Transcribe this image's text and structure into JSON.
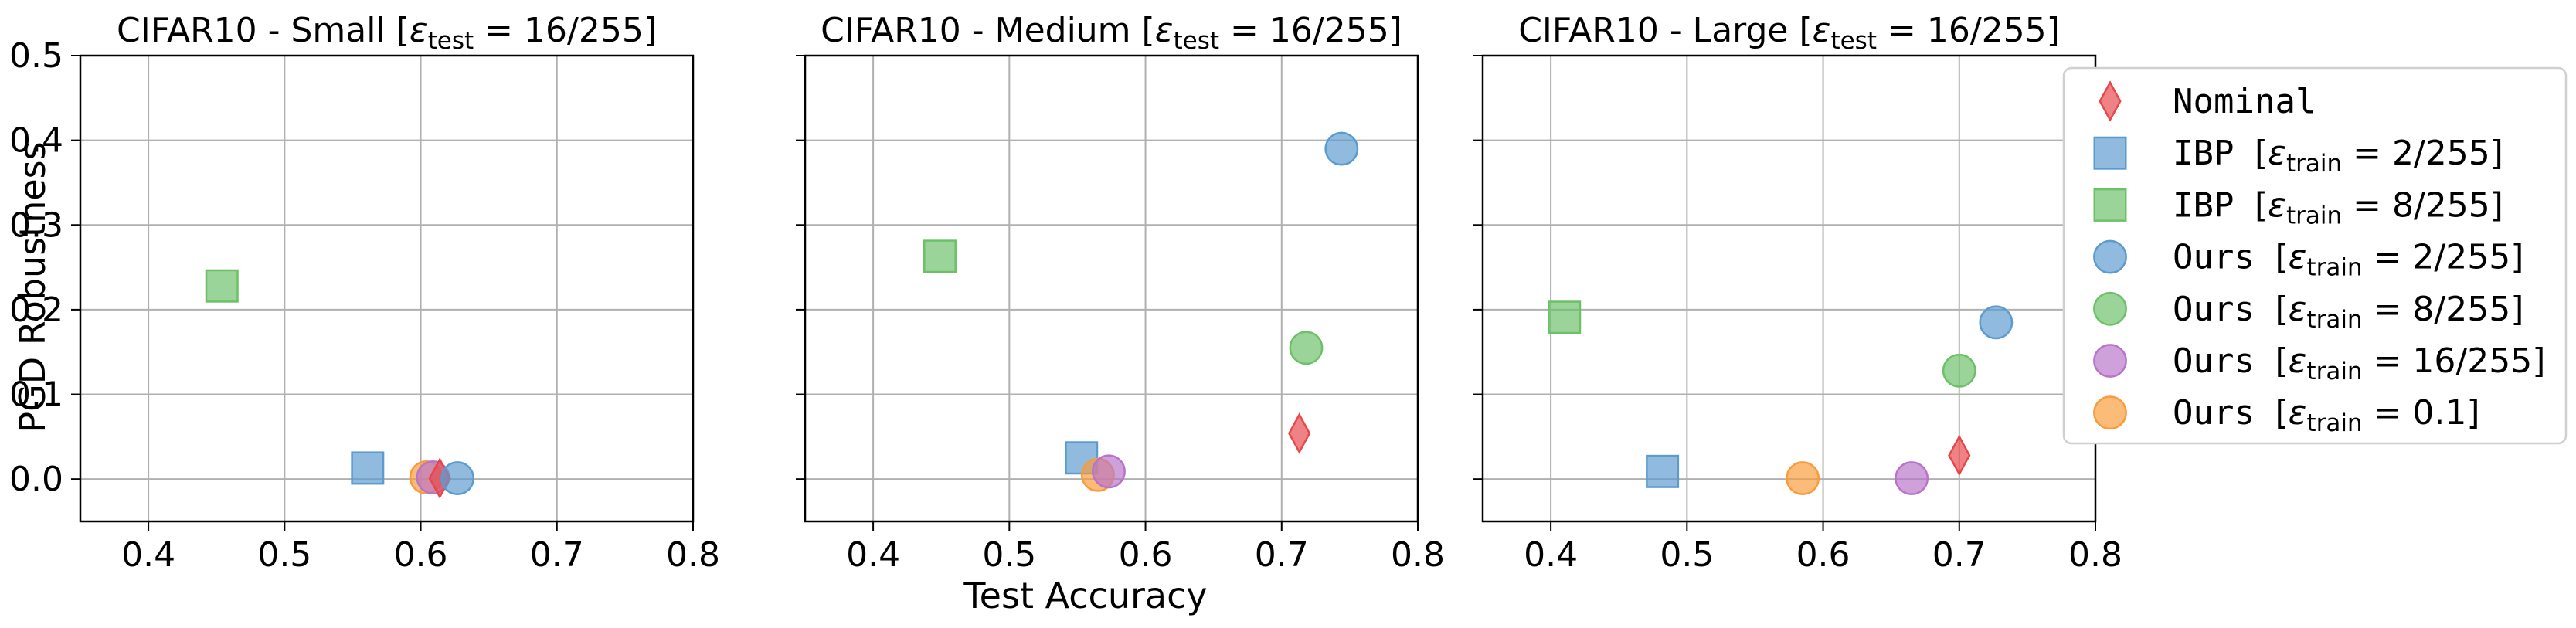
{
  "figure": {
    "xlabel": "Test Accuracy",
    "ylabel": "PGD Robustness"
  },
  "legend": {
    "items": [
      {
        "key": "nominal",
        "name": "Nominal",
        "text": "Nominal",
        "eps": ""
      },
      {
        "key": "ibp2",
        "name": "IBP [ε_train = 2/255]",
        "text": "IBP  ",
        "eps": "2/255"
      },
      {
        "key": "ibp8",
        "name": "IBP [ε_train = 8/255]",
        "text": "IBP  ",
        "eps": "8/255"
      },
      {
        "key": "ours2",
        "name": "Ours [ε_train = 2/255]",
        "text": "Ours ",
        "eps": "2/255"
      },
      {
        "key": "ours8",
        "name": "Ours [ε_train = 8/255]",
        "text": "Ours ",
        "eps": "8/255"
      },
      {
        "key": "ours16",
        "name": "Ours [ε_train = 16/255]",
        "text": "Ours ",
        "eps": "16/255"
      },
      {
        "key": "ours01",
        "name": "Ours [ε_train = 0.1]",
        "text": "Ours ",
        "eps": "0.1"
      }
    ]
  },
  "styles": {
    "nominal": {
      "marker": "diamond",
      "color": "#e8474a"
    },
    "ibp2": {
      "marker": "square",
      "color": "#5b9bd0"
    },
    "ibp8": {
      "marker": "square",
      "color": "#6cc068"
    },
    "ours2": {
      "marker": "circle",
      "color": "#5b9bd0"
    },
    "ours8": {
      "marker": "circle",
      "color": "#6cc068"
    },
    "ours16": {
      "marker": "circle",
      "color": "#b874c9"
    },
    "ours01": {
      "marker": "circle",
      "color": "#f99b3a"
    }
  },
  "chart_data": [
    {
      "type": "scatter",
      "title": "CIFAR10 - Small [ε_test = 16/255]",
      "title_prefix": "CIFAR10 - Small ",
      "eps_test": "16/255",
      "xlabel": "",
      "ylabel": "PGD Robustness",
      "xlim": [
        0.35,
        0.8
      ],
      "ylim": [
        -0.05,
        0.5
      ],
      "xticks": [
        "0.4",
        "0.5",
        "0.6",
        "0.7",
        "0.8"
      ],
      "yticks": [
        "0.0",
        "0.1",
        "0.2",
        "0.3",
        "0.4",
        "0.5"
      ],
      "grid": true,
      "series": [
        {
          "key": "ibp8",
          "x": 0.454,
          "y": 0.228
        },
        {
          "key": "ibp2",
          "x": 0.561,
          "y": 0.013
        },
        {
          "key": "ours01",
          "x": 0.604,
          "y": 0.002
        },
        {
          "key": "ours16",
          "x": 0.609,
          "y": 0.002
        },
        {
          "key": "nominal",
          "x": 0.614,
          "y": 0.001
        },
        {
          "key": "ours2",
          "x": 0.627,
          "y": 0.001
        }
      ]
    },
    {
      "type": "scatter",
      "title": "CIFAR10 - Medium [ε_test = 16/255]",
      "title_prefix": "CIFAR10 - Medium ",
      "eps_test": "16/255",
      "xlabel": "Test Accuracy",
      "ylabel": "",
      "xlim": [
        0.35,
        0.8
      ],
      "ylim": [
        -0.05,
        0.5
      ],
      "xticks": [
        "0.4",
        "0.5",
        "0.6",
        "0.7",
        "0.8"
      ],
      "yticks": [],
      "grid": true,
      "series": [
        {
          "key": "ibp8",
          "x": 0.449,
          "y": 0.263
        },
        {
          "key": "ours2",
          "x": 0.744,
          "y": 0.39
        },
        {
          "key": "ours8",
          "x": 0.718,
          "y": 0.155
        },
        {
          "key": "nominal",
          "x": 0.713,
          "y": 0.054
        },
        {
          "key": "ibp2",
          "x": 0.553,
          "y": 0.025
        },
        {
          "key": "ours01",
          "x": 0.565,
          "y": 0.005
        },
        {
          "key": "ours16",
          "x": 0.573,
          "y": 0.009
        }
      ]
    },
    {
      "type": "scatter",
      "title": "CIFAR10 - Large [ε_test = 16/255]",
      "title_prefix": "CIFAR10 - Large ",
      "eps_test": "16/255",
      "xlabel": "",
      "ylabel": "",
      "xlim": [
        0.35,
        0.8
      ],
      "ylim": [
        -0.05,
        0.5
      ],
      "xticks": [
        "0.4",
        "0.5",
        "0.6",
        "0.7",
        "0.8"
      ],
      "yticks": [],
      "grid": true,
      "series": [
        {
          "key": "ibp8",
          "x": 0.41,
          "y": 0.191
        },
        {
          "key": "ibp2",
          "x": 0.482,
          "y": 0.009
        },
        {
          "key": "ours01",
          "x": 0.585,
          "y": 0.001
        },
        {
          "key": "ours16",
          "x": 0.665,
          "y": 0.001
        },
        {
          "key": "nominal",
          "x": 0.7,
          "y": 0.028
        },
        {
          "key": "ours8",
          "x": 0.7,
          "y": 0.128
        },
        {
          "key": "ours2",
          "x": 0.727,
          "y": 0.185
        }
      ]
    }
  ]
}
